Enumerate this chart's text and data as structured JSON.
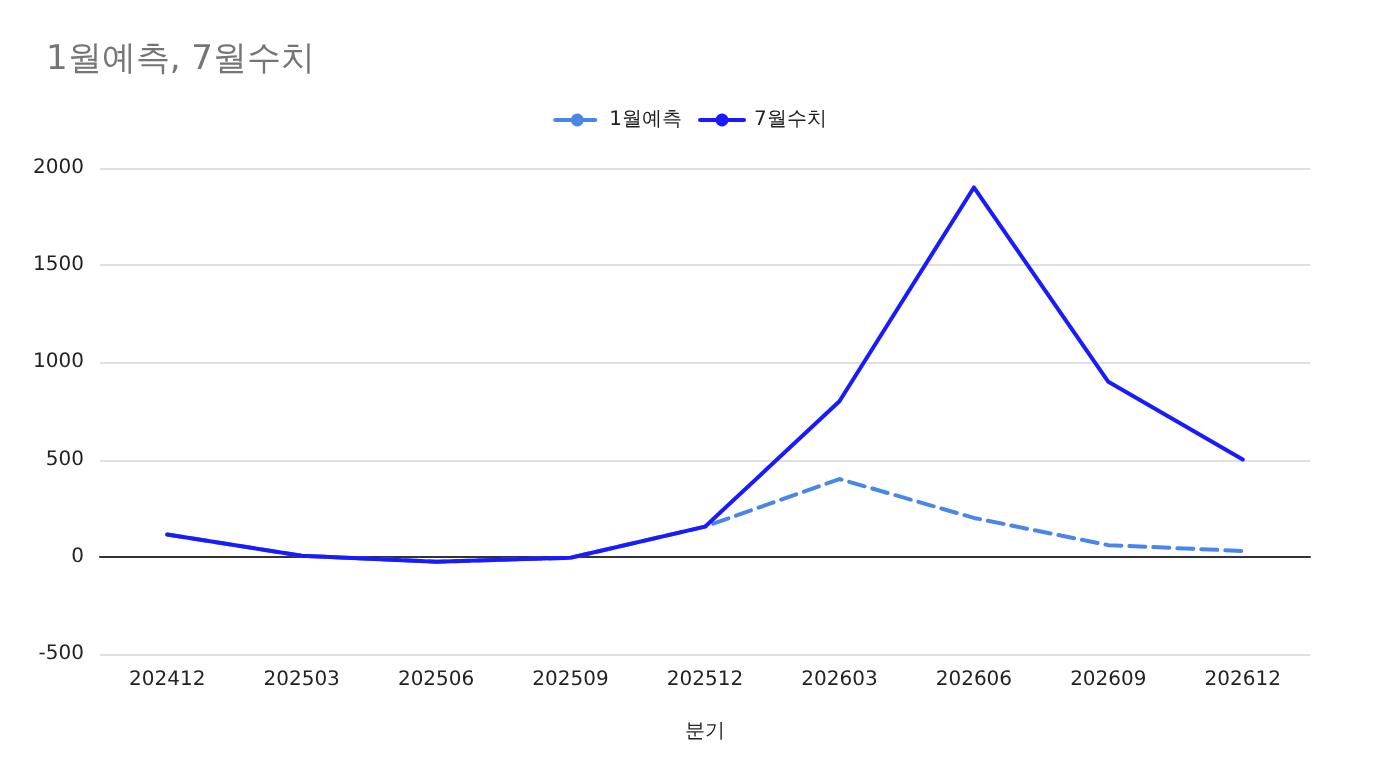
{
  "chart_data": {
    "type": "line",
    "title": "1월예측, 7월수치",
    "xlabel": "분기",
    "categories": [
      "202412",
      "202503",
      "202506",
      "202509",
      "202512",
      "202603",
      "202606",
      "202609",
      "202612"
    ],
    "series": [
      {
        "name": "1월예측",
        "color": "#4a86e8",
        "line_style": "dashed",
        "values": [
          115,
          5,
          -25,
          -5,
          155,
          400,
          200,
          60,
          30
        ]
      },
      {
        "name": "7월수치",
        "color": "#1a1aff",
        "line_style": "solid",
        "values": [
          115,
          5,
          -25,
          -5,
          155,
          800,
          1900,
          900,
          500
        ]
      }
    ],
    "ylim": [
      -500,
      2000
    ],
    "yticks": [
      -500,
      0,
      500,
      1000,
      1500,
      2000
    ],
    "grid": "y",
    "legend": "top",
    "marker": "none"
  }
}
